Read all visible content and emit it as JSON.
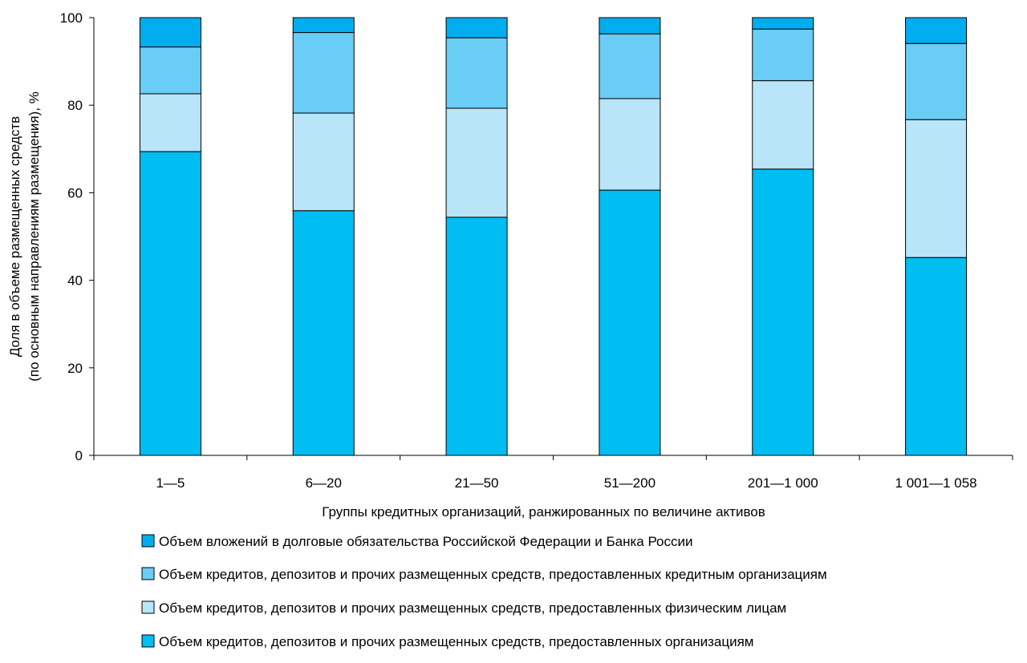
{
  "chart_data": {
    "type": "bar",
    "stacked": true,
    "categories": [
      "1—5",
      "6—20",
      "21—50",
      "51—200",
      "201—1 000",
      "1 001—1 058"
    ],
    "xlabel": "Группы кредитных организаций, ранжированных по величине активов",
    "ylabel_lines": [
      "Доля в объеме размещенных средств",
      "(по основным направлениям размещения), %"
    ],
    "ylim": [
      0,
      100
    ],
    "yticks": [
      0,
      20,
      40,
      60,
      80,
      100
    ],
    "grid": false,
    "legend_position": "bottom",
    "series": [
      {
        "name": "Объем кредитов, депозитов и прочих размещенных средств, предоставленных организациям",
        "color": "#00BDF2",
        "values": [
          69.4,
          55.9,
          54.4,
          60.6,
          65.4,
          45.2
        ]
      },
      {
        "name": "Объем кредитов, депозитов и прочих размещенных средств, предоставленных физическим лицам",
        "color": "#B9E5F8",
        "values": [
          13.2,
          22.3,
          24.9,
          20.9,
          20.2,
          31.5
        ]
      },
      {
        "name": "Объем кредитов, депозитов и прочих размещенных средств, предоставленных кредитным организациям",
        "color": "#6ACDF5",
        "values": [
          10.7,
          18.4,
          16.1,
          14.8,
          11.8,
          17.4
        ]
      },
      {
        "name": "Объем вложений в  долговые обязательства Российской Федерации и Банка России",
        "color": "#00AEEF",
        "values": [
          6.7,
          3.4,
          4.6,
          3.7,
          2.6,
          5.9
        ]
      }
    ],
    "legend_order": [
      3,
      2,
      1,
      0
    ]
  }
}
